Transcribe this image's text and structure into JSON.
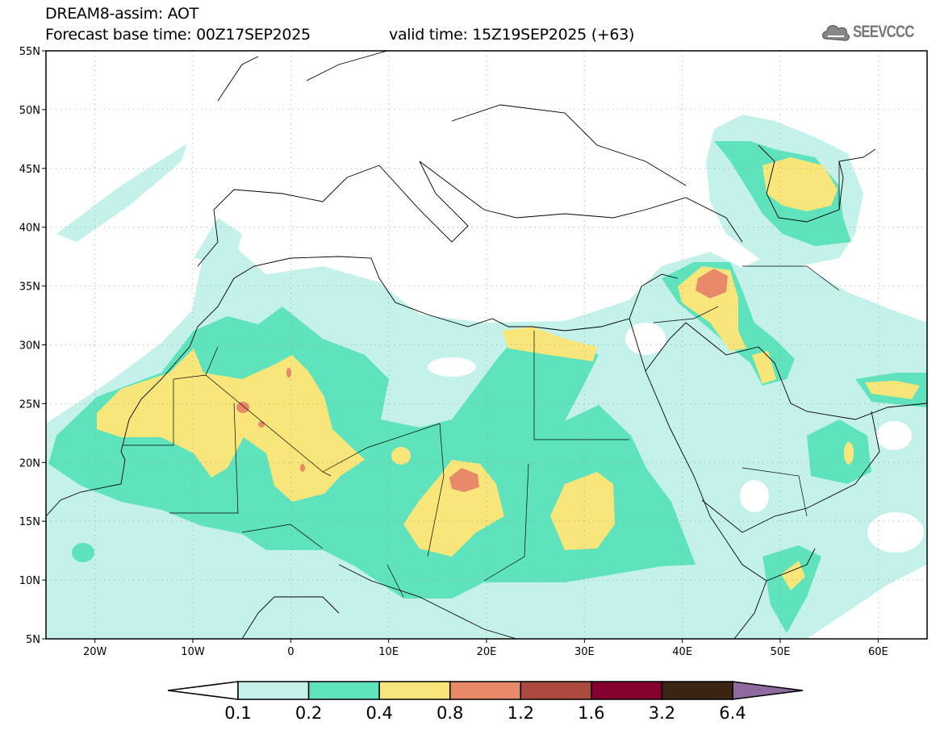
{
  "header": {
    "title": "DREAM8-assim: AOT",
    "base_time": "Forecast base time: 00Z17SEP2025",
    "valid_time": "valid time: 15Z19SEP2025 (+63)",
    "logo_text": "SEEVCCC"
  },
  "map": {
    "lon_range": [
      -25,
      65
    ],
    "lat_range": [
      5,
      55
    ],
    "lat_ticks": [
      {
        "value": 55,
        "label": "55N"
      },
      {
        "value": 50,
        "label": "50N"
      },
      {
        "value": 45,
        "label": "45N"
      },
      {
        "value": 40,
        "label": "40N"
      },
      {
        "value": 35,
        "label": "35N"
      },
      {
        "value": 30,
        "label": "30N"
      },
      {
        "value": 25,
        "label": "25N"
      },
      {
        "value": 20,
        "label": "20N"
      },
      {
        "value": 15,
        "label": "15N"
      },
      {
        "value": 10,
        "label": "10N"
      },
      {
        "value": 5,
        "label": "5N"
      }
    ],
    "lon_ticks": [
      {
        "value": -20,
        "label": "20W"
      },
      {
        "value": -10,
        "label": "10W"
      },
      {
        "value": 0,
        "label": "0"
      },
      {
        "value": 10,
        "label": "10E"
      },
      {
        "value": 20,
        "label": "20E"
      },
      {
        "value": 30,
        "label": "30E"
      },
      {
        "value": 40,
        "label": "40E"
      },
      {
        "value": 50,
        "label": "50E"
      },
      {
        "value": 60,
        "label": "60E"
      }
    ]
  },
  "colorbar": {
    "labels": [
      "0.1",
      "0.2",
      "0.4",
      "0.8",
      "1.2",
      "1.6",
      "3.2",
      "6.4"
    ],
    "below_color": "#ffffff",
    "colors": [
      "#c4f2ea",
      "#5ee3bc",
      "#f8e67a",
      "#e8896a",
      "#ab4b40",
      "#84002e",
      "#3b2412"
    ],
    "above_color": "#8e6aa0"
  }
}
